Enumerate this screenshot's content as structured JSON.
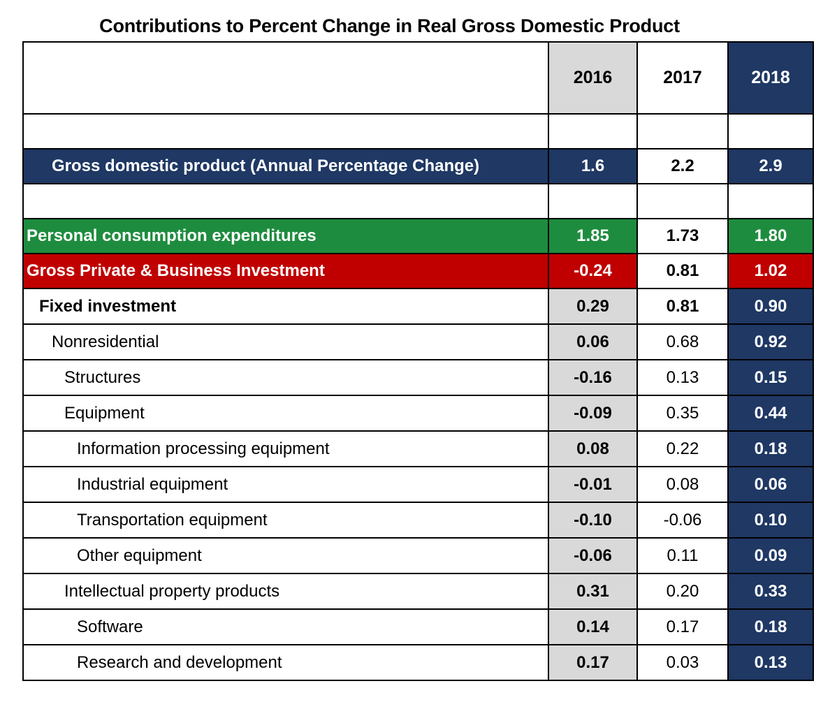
{
  "chart_data": {
    "type": "table",
    "title": "Contributions to Percent Change in Real Gross Domestic Product",
    "columns": [
      "2016",
      "2017",
      "2018"
    ],
    "headline": {
      "label": "Gross domestic product (Annual Percentage Change)",
      "values": [
        "1.6",
        "2.2",
        "2.9"
      ]
    },
    "rows": [
      {
        "label": "Personal consumption expenditures",
        "values": [
          "1.85",
          "1.73",
          "1.80"
        ]
      },
      {
        "label": "Gross Private & Business Investment",
        "values": [
          "-0.24",
          "0.81",
          "1.02"
        ]
      },
      {
        "label": "Fixed investment",
        "values": [
          "0.29",
          "0.81",
          "0.90"
        ]
      },
      {
        "label": "Nonresidential",
        "values": [
          "0.06",
          "0.68",
          "0.92"
        ]
      },
      {
        "label": "Structures",
        "values": [
          "-0.16",
          "0.13",
          "0.15"
        ]
      },
      {
        "label": "Equipment",
        "values": [
          "-0.09",
          "0.35",
          "0.44"
        ]
      },
      {
        "label": "Information processing equipment",
        "values": [
          "0.08",
          "0.22",
          "0.18"
        ]
      },
      {
        "label": "Industrial equipment",
        "values": [
          "-0.01",
          "0.08",
          "0.06"
        ]
      },
      {
        "label": "Transportation equipment",
        "values": [
          "-0.10",
          "-0.06",
          "0.10"
        ]
      },
      {
        "label": "Other equipment",
        "values": [
          "-0.06",
          "0.11",
          "0.09"
        ]
      },
      {
        "label": "Intellectual property products",
        "values": [
          "0.31",
          "0.20",
          "0.33"
        ]
      },
      {
        "label": "Software",
        "values": [
          "0.14",
          "0.17",
          "0.18"
        ]
      },
      {
        "label": "Research and development",
        "values": [
          "0.17",
          "0.03",
          "0.13"
        ]
      }
    ]
  },
  "colors": {
    "navy": "#1f3864",
    "grey": "#d9d9d9",
    "green": "#1e8c3e",
    "red": "#c00000"
  }
}
